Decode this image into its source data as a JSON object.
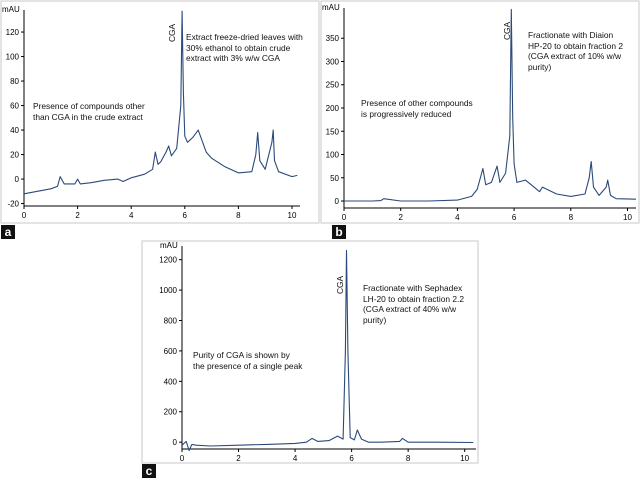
{
  "chart_data": [
    {
      "type": "line",
      "panel_label": "a",
      "unit": "mAU",
      "xlim": [
        0,
        10.3
      ],
      "ylim": [
        -22,
        138
      ],
      "x_ticks": [
        0,
        2,
        4,
        6,
        8,
        10
      ],
      "y_ticks": [
        -20,
        0,
        20,
        40,
        60,
        80,
        100,
        120
      ],
      "peak_label": "CGA",
      "annotations": [
        "Extract freeze-dried leaves with\n30% ethanol to obtain crude\nextract with 3% w/w CGA",
        "Presence of compounds other\nthan CGA in the crude extract"
      ],
      "series": [
        {
          "x": [
            0,
            0.5,
            1.0,
            1.25,
            1.35,
            1.5,
            1.9,
            2.0,
            2.1,
            2.5,
            3.0,
            3.5,
            3.7,
            4.0,
            4.5,
            4.8,
            4.9,
            5.0,
            5.1,
            5.3,
            5.4,
            5.5,
            5.7,
            5.85,
            5.9,
            5.95,
            6.0,
            6.1,
            6.3,
            6.5,
            6.6,
            6.8,
            7.0,
            7.5,
            8.0,
            8.5,
            8.65,
            8.72,
            8.8,
            9.0,
            9.25,
            9.3,
            9.35,
            9.5,
            10.0,
            10.2
          ],
          "y": [
            -12,
            -10,
            -8,
            -6,
            2,
            -4,
            -4,
            0,
            -4,
            -3,
            -1,
            0,
            -2,
            1,
            4,
            8,
            22,
            12,
            14,
            22,
            27,
            19,
            25,
            60,
            137,
            70,
            35,
            30,
            34,
            40,
            34,
            22,
            17,
            10,
            5,
            6,
            20,
            38,
            15,
            8,
            30,
            40,
            15,
            6,
            2,
            3
          ]
        }
      ]
    },
    {
      "type": "line",
      "panel_label": "b",
      "unit": "mAU",
      "xlim": [
        0,
        10.3
      ],
      "ylim": [
        -15,
        415
      ],
      "x_ticks": [
        0,
        2,
        4,
        6,
        8,
        10
      ],
      "y_ticks": [
        0,
        50,
        100,
        150,
        200,
        250,
        300,
        350
      ],
      "peak_label": "CGA",
      "annotations": [
        "Fractionate with Diaion\nHP-20 to obtain fraction 2\n(CGA extract of 10% w/w purity)",
        "Presence of other compounds\nis progressively reduced"
      ],
      "series": [
        {
          "x": [
            0,
            1.0,
            1.3,
            1.4,
            2.0,
            3.0,
            4.0,
            4.5,
            4.7,
            4.9,
            5.0,
            5.2,
            5.4,
            5.5,
            5.7,
            5.85,
            5.9,
            5.95,
            6.0,
            6.1,
            6.4,
            6.6,
            6.9,
            7.0,
            7.5,
            8.0,
            8.5,
            8.65,
            8.72,
            8.8,
            9.0,
            9.25,
            9.3,
            9.4,
            9.6,
            10.3
          ],
          "y": [
            0,
            0,
            1,
            5,
            0,
            0,
            2,
            10,
            25,
            70,
            35,
            40,
            75,
            40,
            60,
            140,
            412,
            180,
            80,
            40,
            45,
            35,
            20,
            30,
            15,
            10,
            15,
            50,
            85,
            30,
            12,
            30,
            45,
            12,
            5,
            4
          ]
        }
      ]
    },
    {
      "type": "line",
      "panel_label": "c",
      "unit": "mAU",
      "xlim": [
        0,
        10.4
      ],
      "ylim": [
        -45,
        1290
      ],
      "x_ticks": [
        0,
        2,
        4,
        6,
        8,
        10
      ],
      "y_ticks": [
        0,
        200,
        400,
        600,
        800,
        1000,
        1200
      ],
      "peak_label": "CGA",
      "annotations": [
        "Fractionate with Sephadex\nLH-20 to obtain fraction 2.2\n(CGA extract of 40% w/w purity)",
        "Purity of CGA is shown by\nthe presence of a single peak"
      ],
      "series": [
        {
          "x": [
            0,
            0.15,
            0.25,
            0.35,
            0.5,
            1.0,
            2.0,
            3.0,
            4.0,
            4.4,
            4.6,
            4.8,
            5.2,
            5.5,
            5.7,
            5.78,
            5.82,
            5.87,
            5.95,
            6.1,
            6.2,
            6.35,
            6.6,
            7.0,
            7.7,
            7.8,
            8.0,
            9.0,
            10.3
          ],
          "y": [
            -20,
            5,
            -55,
            -15,
            -20,
            -25,
            -20,
            -15,
            -8,
            0,
            25,
            5,
            10,
            40,
            20,
            600,
            1260,
            600,
            30,
            15,
            80,
            20,
            0,
            0,
            5,
            25,
            0,
            0,
            -2
          ]
        }
      ]
    }
  ]
}
